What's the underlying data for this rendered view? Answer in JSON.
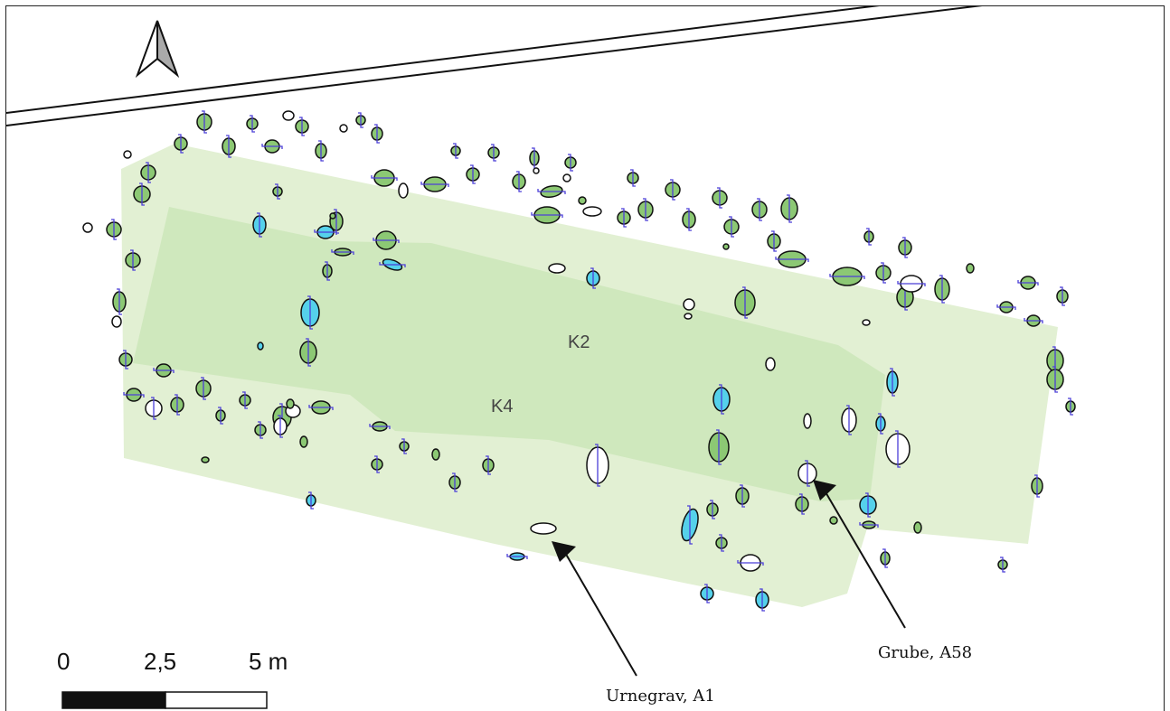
{
  "map": {
    "areas": [
      {
        "name": "area-k2",
        "label": "K2"
      },
      {
        "name": "area-k4",
        "label": "K4"
      }
    ],
    "annotations": [
      {
        "name": "annotation-urnegrav",
        "label": "Urnegrav, A1"
      },
      {
        "name": "annotation-grube",
        "label": "Grube, A58"
      }
    ],
    "scale_bar": {
      "labels": [
        "0",
        "2,5",
        "5 m"
      ]
    },
    "north_arrow": {
      "icon": "north-arrow-icon"
    },
    "colors": {
      "outer_area": "#e2f0d3",
      "inner_area": "#cfe8bd",
      "feature_green": "#8cc874",
      "feature_cyan": "#55d1eb",
      "section_line": "#4b3fd8",
      "outline": "#111111"
    }
  }
}
